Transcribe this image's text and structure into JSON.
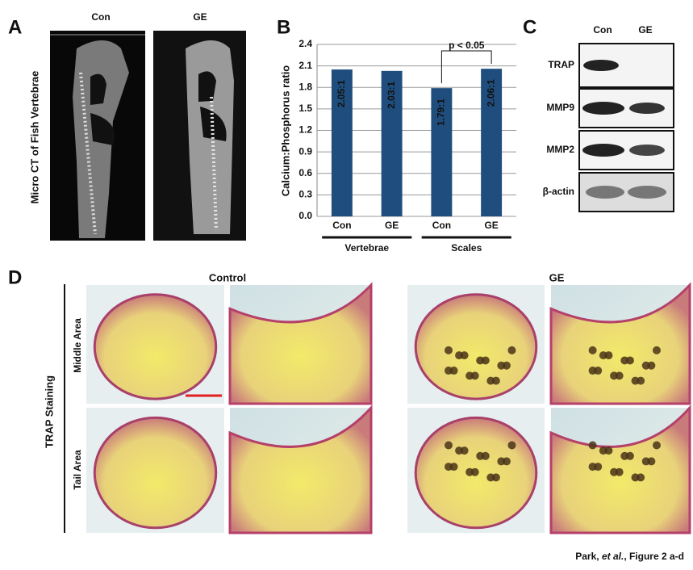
{
  "chart_data": {
    "type": "bar",
    "ylabel": "Calcium:Phosphorus ratio",
    "categories": [
      "Con",
      "GE",
      "Con",
      "GE"
    ],
    "groups": [
      "Vertebrae",
      "Scales"
    ],
    "values": [
      2.05,
      2.03,
      1.79,
      2.06
    ],
    "value_labels": [
      "2.05:1",
      "2.03:1",
      "1.79:1",
      "2.06:1"
    ],
    "color": "#1f4e7e",
    "label_color": "#f5f500",
    "ylim": [
      0,
      2.4
    ],
    "yticks": [
      {
        "value": 0,
        "label": "0.0"
      },
      0.3,
      0.6,
      0.9,
      1.2,
      1.5,
      1.8,
      2.1,
      2.4
    ],
    "annotation": "p < 0.05"
  },
  "panels": {
    "a": {
      "letter": "A",
      "columns": [
        "Con",
        "GE"
      ],
      "ylabel": "Micro CT of Fish Vertebrae"
    },
    "b": {
      "letter": "B"
    },
    "c": {
      "letter": "C",
      "columns": [
        "Con",
        "GE"
      ],
      "rows": [
        "TRAP",
        "MMP9",
        "MMP2",
        "β-actin"
      ]
    },
    "d": {
      "letter": "D",
      "columns": [
        "Control",
        "GE"
      ],
      "ylabel": "TRAP Staining",
      "rows": [
        "Middle Area",
        "Tail Area"
      ]
    }
  },
  "footer": {
    "author": "Park, ",
    "etal": "et al.",
    "rest": ", Figure 2 a-d"
  }
}
